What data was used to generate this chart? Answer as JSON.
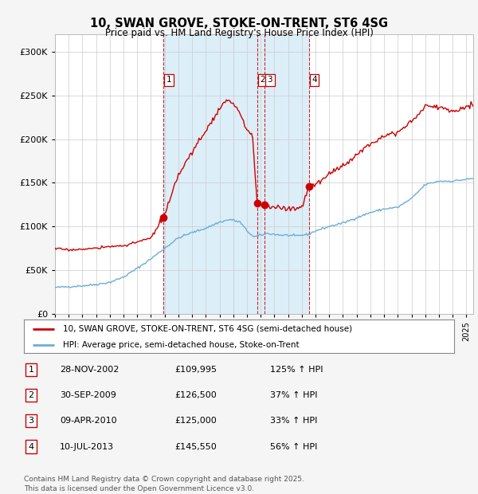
{
  "title": "10, SWAN GROVE, STOKE-ON-TRENT, ST6 4SG",
  "subtitle": "Price paid vs. HM Land Registry's House Price Index (HPI)",
  "legend_line1": "10, SWAN GROVE, STOKE-ON-TRENT, ST6 4SG (semi-detached house)",
  "legend_line2": "HPI: Average price, semi-detached house, Stoke-on-Trent",
  "footer": "Contains HM Land Registry data © Crown copyright and database right 2025.\nThis data is licensed under the Open Government Licence v3.0.",
  "transactions": [
    {
      "num": 1,
      "date": "28-NOV-2002",
      "price": 109995,
      "pct": "125%",
      "dir": "↑"
    },
    {
      "num": 2,
      "date": "30-SEP-2009",
      "price": 126500,
      "pct": "37%",
      "dir": "↑"
    },
    {
      "num": 3,
      "date": "09-APR-2010",
      "price": 125000,
      "pct": "33%",
      "dir": "↑"
    },
    {
      "num": 4,
      "date": "10-JUL-2013",
      "price": 145550,
      "pct": "56%",
      "dir": "↑"
    }
  ],
  "transaction_dates_decimal": [
    2002.91,
    2009.75,
    2010.27,
    2013.52
  ],
  "transaction_prices": [
    109995,
    126500,
    125000,
    145550
  ],
  "hpi_line_color": "#6baed6",
  "price_line_color": "#cc0000",
  "shade_color": "#dceef8",
  "plot_bg_color": "#ffffff",
  "vline_color": "#cc0000",
  "ylim": [
    0,
    320000
  ],
  "xlim_start": 1995.0,
  "xlim_end": 2025.5,
  "fig_bg_color": "#f5f5f5"
}
